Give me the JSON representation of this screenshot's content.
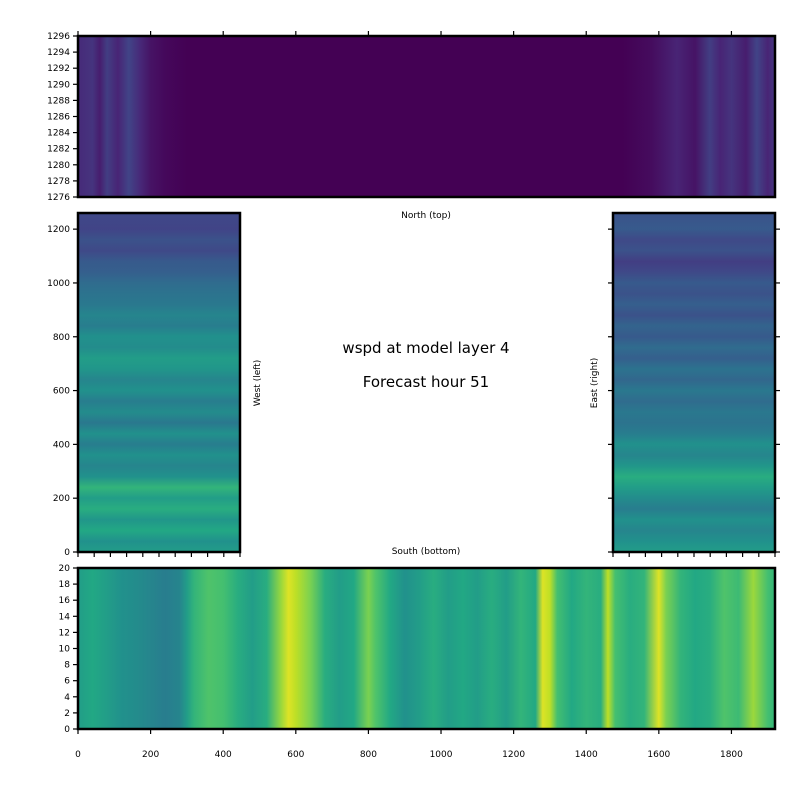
{
  "title": {
    "line1": "wspd at model layer 4",
    "line2": "Forecast hour 51"
  },
  "chart_data": {
    "type": "heatmap",
    "colormap": "viridis",
    "panels": [
      {
        "name": "north",
        "label": "North (top)",
        "x_range": [
          0,
          1920
        ],
        "y_range": [
          1276,
          1296
        ],
        "y_ticks": [
          1276,
          1278,
          1280,
          1282,
          1284,
          1286,
          1288,
          1290,
          1292,
          1294,
          1296
        ],
        "profile_axis": "x",
        "stops": [
          [
            0,
            0.12
          ],
          [
            40,
            0.15
          ],
          [
            60,
            0.08
          ],
          [
            80,
            0.18
          ],
          [
            110,
            0.1
          ],
          [
            140,
            0.2
          ],
          [
            170,
            0.12
          ],
          [
            200,
            0.05
          ],
          [
            240,
            0.02
          ],
          [
            300,
            0.0
          ],
          [
            1500,
            0.0
          ],
          [
            1580,
            0.03
          ],
          [
            1650,
            0.1
          ],
          [
            1700,
            0.05
          ],
          [
            1740,
            0.18
          ],
          [
            1770,
            0.1
          ],
          [
            1800,
            0.15
          ],
          [
            1840,
            0.08
          ],
          [
            1870,
            0.2
          ],
          [
            1900,
            0.1
          ],
          [
            1920,
            0.16
          ]
        ]
      },
      {
        "name": "west",
        "label": "West (left)",
        "x_range": [
          0,
          450
        ],
        "y_range": [
          0,
          1260
        ],
        "y_ticks": [
          0,
          200,
          400,
          600,
          800,
          1000,
          1200
        ],
        "profile_axis": "y",
        "stops": [
          [
            0,
            0.55
          ],
          [
            40,
            0.5
          ],
          [
            80,
            0.6
          ],
          [
            120,
            0.52
          ],
          [
            160,
            0.62
          ],
          [
            200,
            0.55
          ],
          [
            240,
            0.65
          ],
          [
            280,
            0.5
          ],
          [
            320,
            0.45
          ],
          [
            360,
            0.5
          ],
          [
            400,
            0.42
          ],
          [
            440,
            0.5
          ],
          [
            480,
            0.4
          ],
          [
            520,
            0.48
          ],
          [
            560,
            0.42
          ],
          [
            600,
            0.5
          ],
          [
            640,
            0.45
          ],
          [
            680,
            0.52
          ],
          [
            720,
            0.55
          ],
          [
            760,
            0.48
          ],
          [
            800,
            0.5
          ],
          [
            840,
            0.42
          ],
          [
            880,
            0.45
          ],
          [
            920,
            0.4
          ],
          [
            960,
            0.38
          ],
          [
            1000,
            0.35
          ],
          [
            1040,
            0.3
          ],
          [
            1080,
            0.28
          ],
          [
            1120,
            0.22
          ],
          [
            1160,
            0.25
          ],
          [
            1200,
            0.2
          ],
          [
            1260,
            0.22
          ]
        ]
      },
      {
        "name": "east",
        "label": "East (right)",
        "x_range": [
          1470,
          1920
        ],
        "y_range": [
          0,
          1260
        ],
        "y_ticks": [
          0,
          200,
          400,
          600,
          800,
          1000,
          1200
        ],
        "profile_axis": "y",
        "stops": [
          [
            0,
            0.55
          ],
          [
            40,
            0.5
          ],
          [
            80,
            0.45
          ],
          [
            120,
            0.5
          ],
          [
            160,
            0.42
          ],
          [
            200,
            0.48
          ],
          [
            240,
            0.55
          ],
          [
            280,
            0.62
          ],
          [
            320,
            0.52
          ],
          [
            360,
            0.45
          ],
          [
            400,
            0.5
          ],
          [
            440,
            0.42
          ],
          [
            480,
            0.38
          ],
          [
            520,
            0.4
          ],
          [
            560,
            0.35
          ],
          [
            600,
            0.4
          ],
          [
            640,
            0.33
          ],
          [
            680,
            0.38
          ],
          [
            720,
            0.3
          ],
          [
            760,
            0.35
          ],
          [
            800,
            0.28
          ],
          [
            840,
            0.32
          ],
          [
            880,
            0.25
          ],
          [
            920,
            0.3
          ],
          [
            960,
            0.25
          ],
          [
            1000,
            0.28
          ],
          [
            1040,
            0.22
          ],
          [
            1080,
            0.18
          ],
          [
            1120,
            0.25
          ],
          [
            1160,
            0.22
          ],
          [
            1200,
            0.28
          ],
          [
            1260,
            0.25
          ]
        ]
      },
      {
        "name": "south",
        "label": "South (bottom)",
        "x_range": [
          0,
          1920
        ],
        "y_range": [
          0,
          20
        ],
        "y_ticks": [
          0,
          2,
          4,
          6,
          8,
          10,
          12,
          14,
          16,
          18,
          20
        ],
        "profile_axis": "x",
        "stops": [
          [
            0,
            0.55
          ],
          [
            40,
            0.6
          ],
          [
            80,
            0.55
          ],
          [
            120,
            0.5
          ],
          [
            160,
            0.48
          ],
          [
            200,
            0.45
          ],
          [
            240,
            0.42
          ],
          [
            280,
            0.45
          ],
          [
            300,
            0.55
          ],
          [
            320,
            0.65
          ],
          [
            360,
            0.72
          ],
          [
            400,
            0.7
          ],
          [
            440,
            0.62
          ],
          [
            480,
            0.55
          ],
          [
            520,
            0.62
          ],
          [
            560,
            0.85
          ],
          [
            580,
            0.95
          ],
          [
            600,
            0.9
          ],
          [
            640,
            0.8
          ],
          [
            680,
            0.62
          ],
          [
            720,
            0.55
          ],
          [
            760,
            0.6
          ],
          [
            800,
            0.8
          ],
          [
            820,
            0.72
          ],
          [
            860,
            0.6
          ],
          [
            900,
            0.5
          ],
          [
            940,
            0.55
          ],
          [
            980,
            0.62
          ],
          [
            1020,
            0.55
          ],
          [
            1060,
            0.6
          ],
          [
            1100,
            0.55
          ],
          [
            1140,
            0.62
          ],
          [
            1180,
            0.55
          ],
          [
            1220,
            0.65
          ],
          [
            1260,
            0.6
          ],
          [
            1280,
            0.95
          ],
          [
            1300,
            0.9
          ],
          [
            1320,
            0.7
          ],
          [
            1360,
            0.6
          ],
          [
            1400,
            0.65
          ],
          [
            1440,
            0.62
          ],
          [
            1460,
            0.9
          ],
          [
            1480,
            0.7
          ],
          [
            1520,
            0.62
          ],
          [
            1560,
            0.65
          ],
          [
            1600,
            0.95
          ],
          [
            1620,
            0.8
          ],
          [
            1660,
            0.65
          ],
          [
            1700,
            0.6
          ],
          [
            1740,
            0.62
          ],
          [
            1780,
            0.72
          ],
          [
            1820,
            0.68
          ],
          [
            1860,
            0.85
          ],
          [
            1900,
            0.7
          ],
          [
            1920,
            0.65
          ]
        ]
      }
    ],
    "x_ticks_bottom": [
      0,
      200,
      400,
      600,
      800,
      1000,
      1200,
      1400,
      1600,
      1800
    ]
  }
}
